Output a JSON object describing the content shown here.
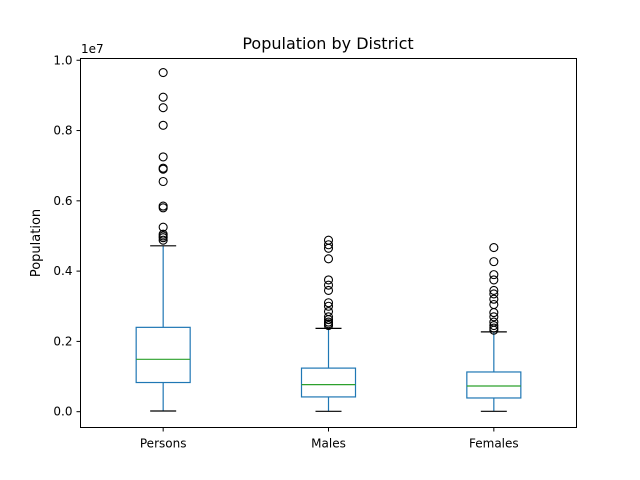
{
  "chart_data": {
    "type": "box",
    "title": "Population by District",
    "xlabel": "",
    "ylabel": "Population",
    "y_offset_label": "1e7",
    "ylim": [
      -0.045,
      1.005
    ],
    "yticks": [
      0.0,
      0.2,
      0.4,
      0.6,
      0.8,
      1.0
    ],
    "ytick_labels": [
      "0.0",
      "0.2",
      "0.4",
      "0.6",
      "0.8",
      "1.0"
    ],
    "grid": false,
    "categories": [
      "Persons",
      "Males",
      "Females"
    ],
    "boxes": [
      {
        "name": "Persons",
        "whisker_low": 0.002,
        "q1": 0.083,
        "median": 0.149,
        "q3": 0.24,
        "whisker_high": 0.472,
        "outliers": [
          0.488,
          0.495,
          0.5,
          0.505,
          0.525,
          0.58,
          0.585,
          0.655,
          0.69,
          0.693,
          0.725,
          0.815,
          0.865,
          0.895,
          0.965
        ]
      },
      {
        "name": "Males",
        "whisker_low": 0.001,
        "q1": 0.042,
        "median": 0.077,
        "q3": 0.124,
        "whisker_high": 0.237,
        "outliers": [
          0.245,
          0.25,
          0.255,
          0.262,
          0.27,
          0.285,
          0.3,
          0.31,
          0.345,
          0.36,
          0.375,
          0.435,
          0.465,
          0.475,
          0.488
        ]
      },
      {
        "name": "Females",
        "whisker_low": 0.001,
        "q1": 0.039,
        "median": 0.073,
        "q3": 0.113,
        "whisker_high": 0.227,
        "outliers": [
          0.232,
          0.238,
          0.245,
          0.255,
          0.27,
          0.282,
          0.305,
          0.32,
          0.335,
          0.345,
          0.375,
          0.39,
          0.427,
          0.467
        ]
      }
    ]
  }
}
